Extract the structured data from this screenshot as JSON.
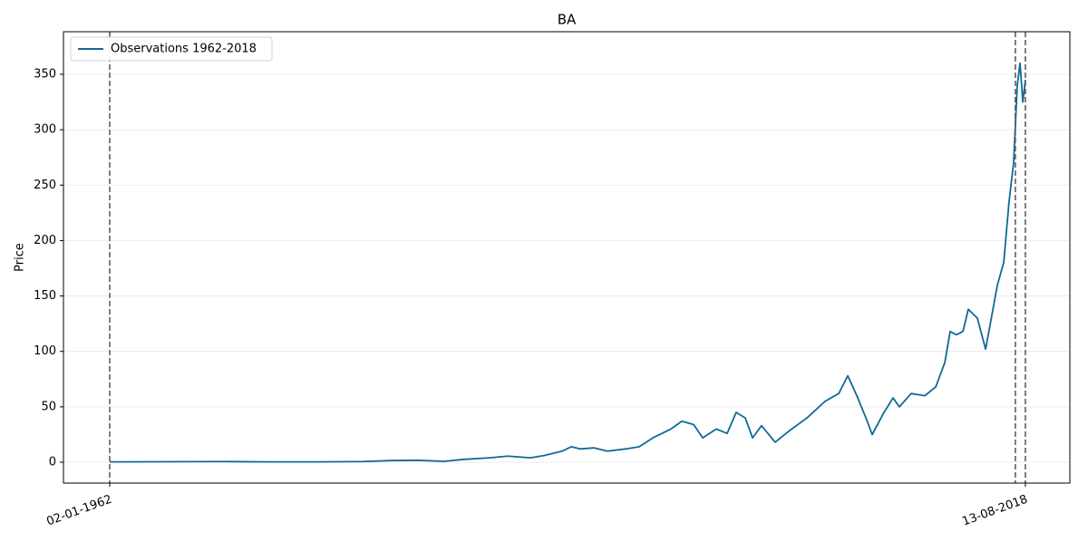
{
  "chart_data": {
    "type": "line",
    "title": "BA",
    "ylabel": "Price",
    "x": [
      1962.0,
      1966.43,
      1969.23,
      1972.03,
      1974.84,
      1977.64,
      1979.32,
      1981.0,
      1982.68,
      1983.81,
      1985.49,
      1986.61,
      1988.01,
      1988.85,
      1989.97,
      1990.53,
      1991.09,
      1991.93,
      1992.77,
      1993.9,
      1994.74,
      1995.58,
      1996.7,
      1997.37,
      1998.1,
      1998.66,
      1999.5,
      2000.17,
      2000.73,
      2001.29,
      2001.74,
      2002.3,
      2003.14,
      2003.98,
      2005.11,
      2006.23,
      2007.07,
      2007.63,
      2008.19,
      2008.75,
      2009.14,
      2009.87,
      2010.43,
      2010.82,
      2011.55,
      2012.39,
      2013.07,
      2013.63,
      2013.96,
      2014.35,
      2014.75,
      2015.08,
      2015.64,
      2016.15,
      2016.48,
      2016.88,
      2017.27,
      2017.6,
      2017.88,
      2018.11,
      2018.28,
      2018.45,
      2018.61
    ],
    "series": [
      {
        "name": "Observations 1962-2018",
        "color": "#0f6a96",
        "values": [
          0.3,
          0.5,
          0.6,
          0.3,
          0.3,
          0.6,
          1.5,
          1.8,
          0.8,
          2.5,
          4,
          5.5,
          4,
          6,
          10,
          14,
          12,
          13,
          10,
          12,
          14,
          22,
          30,
          37,
          34,
          22,
          30,
          26,
          45,
          40,
          22,
          33,
          18,
          28,
          40,
          55,
          62,
          78,
          60,
          40,
          25,
          45,
          58,
          50,
          62,
          60,
          68,
          90,
          118,
          115,
          118,
          138,
          130,
          102,
          128,
          160,
          180,
          235,
          270,
          340,
          360,
          325,
          345
        ]
      }
    ],
    "xlim": [
      1959.14,
      2021.36
    ],
    "xticks": [
      {
        "value": 1962.0,
        "label": "02-01-1962"
      },
      {
        "value": 2018.61,
        "label": "13-08-2018"
      }
    ],
    "ylim": [
      -18.8,
      388.4
    ],
    "yticks": [
      0,
      50,
      100,
      150,
      200,
      250,
      300,
      350
    ],
    "vlines": [
      1962.0,
      2017.99,
      2018.61
    ],
    "grid": true,
    "legend": "upper left"
  }
}
